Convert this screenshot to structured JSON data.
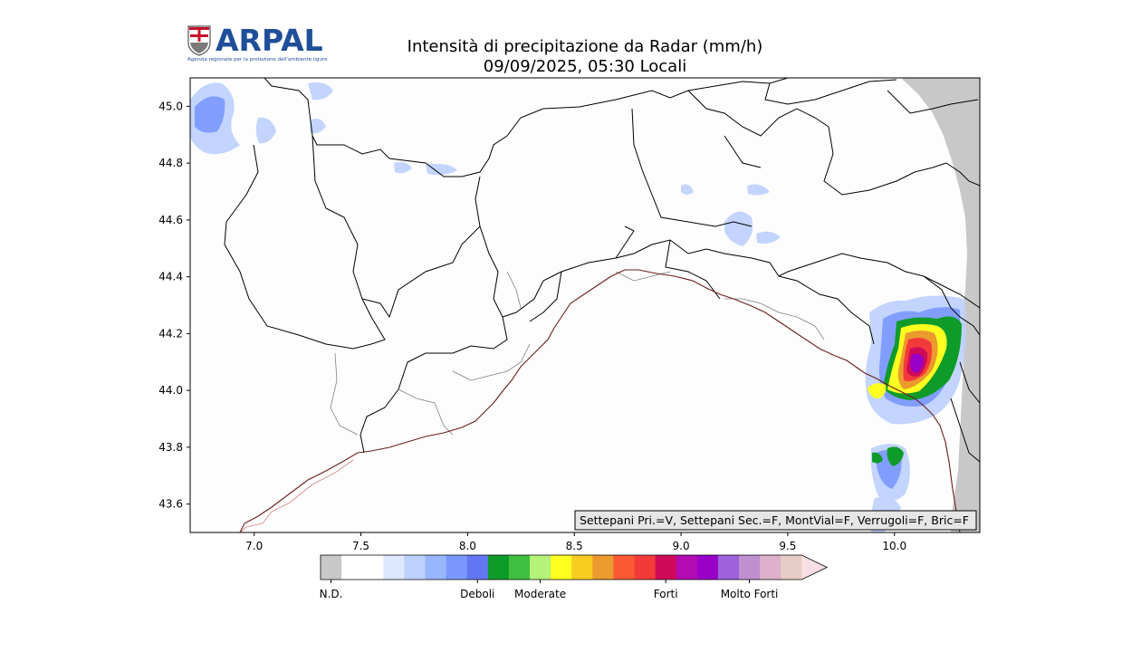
{
  "logo": {
    "name": "ARPAL",
    "subtitle": "Agenzia regionale per la protezione dell'ambiente ligure",
    "brand_color": "#1f4f9a"
  },
  "title": {
    "line1": "Intensità di precipitazione da Radar (mm/h)",
    "line2": "09/09/2025, 05:30 Locali"
  },
  "map": {
    "lon_range": [
      6.7,
      10.4
    ],
    "lat_range": [
      43.5,
      45.1
    ],
    "x_ticks": [
      "7.0",
      "7.5",
      "8.0",
      "8.5",
      "9.0",
      "9.5",
      "10.0"
    ],
    "y_ticks": [
      "45.0",
      "44.8",
      "44.6",
      "44.4",
      "44.2",
      "44.0",
      "43.8",
      "43.6"
    ],
    "flags_text": "Settepani Pri.=V, Settepani Sec.=F, MontVial=F, Verrugoli=F, Bric=F",
    "no_data_color": "#c8c8c8"
  },
  "colorbar": {
    "colors": [
      "#c8c8c8",
      "#ffffff",
      "#ffffff",
      "#dde8ff",
      "#bdd0ff",
      "#98b6ff",
      "#7a98ff",
      "#6377f5",
      "#0e9b2a",
      "#3fbf3f",
      "#b4f27a",
      "#ffff20",
      "#f8cc20",
      "#eb9a2e",
      "#fb5a35",
      "#f33a3a",
      "#cf0a58",
      "#b30ab3",
      "#9800c8",
      "#9d62dc",
      "#bf90d0",
      "#ddb1c9",
      "#e6cdc5",
      "#f8dfe4"
    ],
    "labels": [
      {
        "text": "N.D.",
        "index": 0.5
      },
      {
        "text": "Deboli",
        "index": 7.5
      },
      {
        "text": "Moderate",
        "index": 10.5
      },
      {
        "text": "Forti",
        "index": 16.5
      },
      {
        "text": "Molto Forti",
        "index": 20.5
      }
    ]
  }
}
